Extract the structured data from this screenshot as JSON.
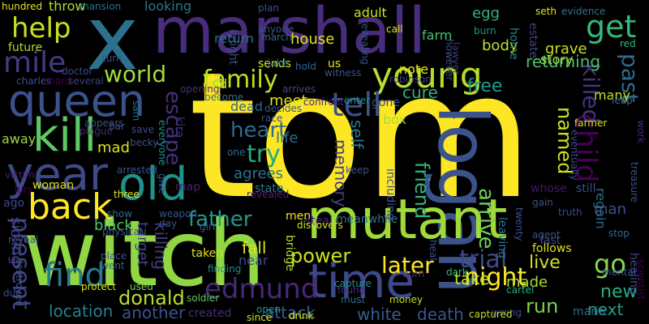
{
  "words": [
    {
      "text": "tom",
      "color": "#fde725"
    },
    {
      "text": "witch",
      "color": "#90d743"
    },
    {
      "text": "x",
      "color": "#2c728e"
    },
    {
      "text": "marshall",
      "color": "#472d7b"
    },
    {
      "text": "logan",
      "color": "#3b528b"
    },
    {
      "text": "mutant",
      "color": "#a0da39"
    },
    {
      "text": "time",
      "color": "#3e4989"
    },
    {
      "text": "queen",
      "color": "#3b528b"
    },
    {
      "text": "kill",
      "color": "#5ec962"
    },
    {
      "text": "year",
      "color": "#3e4989"
    },
    {
      "text": "old",
      "color": "#21918c"
    },
    {
      "text": "young",
      "color": "#b5de2b"
    },
    {
      "text": "back",
      "color": "#fde725"
    },
    {
      "text": "child",
      "color": "#440154"
    },
    {
      "text": "tell",
      "color": "#3b528b"
    },
    {
      "text": "help",
      "color": "#c8e020"
    },
    {
      "text": "get",
      "color": "#35b779"
    },
    {
      "text": "mile",
      "color": "#443983"
    },
    {
      "text": "edmund",
      "color": "#482878"
    },
    {
      "text": "find",
      "color": "#2a788e"
    },
    {
      "text": "killed",
      "color": "#46337f"
    },
    {
      "text": "past",
      "color": "#31688e"
    },
    {
      "text": "family",
      "color": "#bddf26"
    },
    {
      "text": "world",
      "color": "#a5db36"
    },
    {
      "text": "heart",
      "color": "#31688e"
    },
    {
      "text": "escape",
      "color": "#472f7d"
    },
    {
      "text": "try",
      "color": "#22a884"
    },
    {
      "text": "present",
      "color": "#414487"
    },
    {
      "text": "trial",
      "color": "#3e4a89"
    },
    {
      "text": "go",
      "color": "#89d548"
    },
    {
      "text": "night",
      "color": "#fde725"
    },
    {
      "text": "later",
      "color": "#fde725"
    },
    {
      "text": "arrive",
      "color": "#6ece58"
    },
    {
      "text": "friend",
      "color": "#31b57b"
    },
    {
      "text": "named",
      "color": "#cae11f"
    },
    {
      "text": "father",
      "color": "#1f9a8a"
    },
    {
      "text": "donald",
      "color": "#b8de29"
    },
    {
      "text": "power",
      "color": "#cde11d"
    },
    {
      "text": "run",
      "color": "#7ad151"
    },
    {
      "text": "new",
      "color": "#29af7f"
    },
    {
      "text": "next",
      "color": "#1fa187"
    },
    {
      "text": "live",
      "color": "#d0e11c"
    },
    {
      "text": "take",
      "color": "#c2df23"
    },
    {
      "text": "fall",
      "color": "#dde318"
    },
    {
      "text": "white",
      "color": "#355f8d"
    },
    {
      "text": "location",
      "color": "#287d8e"
    },
    {
      "text": "attack",
      "color": "#365c8d"
    },
    {
      "text": "death",
      "color": "#3a548c"
    },
    {
      "text": "another",
      "color": "#3b518b"
    },
    {
      "text": "returning",
      "color": "#4ac16d"
    },
    {
      "text": "free",
      "color": "#1e9d89"
    },
    {
      "text": "cure",
      "color": "#2db27d"
    },
    {
      "text": "note",
      "color": "#e5e419"
    },
    {
      "text": "meet",
      "color": "#dce319"
    },
    {
      "text": "life",
      "color": "#2e6d8e"
    },
    {
      "text": "self",
      "color": "#2a778e"
    },
    {
      "text": "memory",
      "color": "#433e85"
    },
    {
      "text": "agrees",
      "color": "#2c738e"
    },
    {
      "text": "killing",
      "color": "#433d84"
    },
    {
      "text": "target",
      "color": "#3f4788"
    },
    {
      "text": "black",
      "color": "#52c569"
    },
    {
      "text": "sibling",
      "color": "#424086"
    },
    {
      "text": "made",
      "color": "#a8db34"
    },
    {
      "text": "box",
      "color": "#a8db34"
    },
    {
      "text": "dead",
      "color": "#33638d"
    },
    {
      "text": "end",
      "color": "#d5e21a"
    },
    {
      "text": "mad",
      "color": "#dae319"
    },
    {
      "text": "away",
      "color": "#9bd93c"
    },
    {
      "text": "woman",
      "color": "#dae319"
    },
    {
      "text": "return",
      "color": "#2e6e8e"
    },
    {
      "text": "house",
      "color": "#e2e418"
    },
    {
      "text": "farm",
      "color": "#46c06f"
    },
    {
      "text": "egg",
      "color": "#2fb47c"
    },
    {
      "text": "call",
      "color": "#e7e419"
    },
    {
      "text": "body",
      "color": "#c0df25"
    },
    {
      "text": "grave",
      "color": "#c5e021"
    },
    {
      "text": "story",
      "color": "#a2da37"
    },
    {
      "text": "many",
      "color": "#c5e021"
    },
    {
      "text": "throw",
      "color": "#b2dd2d"
    },
    {
      "text": "future",
      "color": "#addc30"
    },
    {
      "text": "looking",
      "color": "#2b758e"
    },
    {
      "text": "adult",
      "color": "#cde11d"
    },
    {
      "text": "knight",
      "color": "#3d4d8a"
    },
    {
      "text": "sends",
      "color": "#dde318"
    },
    {
      "text": "us",
      "color": "#e2e418"
    },
    {
      "text": "opening",
      "color": "#472d7b"
    },
    {
      "text": "healing",
      "color": "#404688"
    },
    {
      "text": "map",
      "color": "#481f70"
    },
    {
      "text": "kira",
      "color": "#46327e"
    },
    {
      "text": "men",
      "color": "#f1e51d"
    },
    {
      "text": "bridge",
      "color": "#b2dd2d"
    },
    {
      "text": "near",
      "color": "#3e4989"
    },
    {
      "text": "taken",
      "color": "#dde318"
    },
    {
      "text": "steal",
      "color": "#482576"
    },
    {
      "text": "meanwhile",
      "color": "#2c738e"
    },
    {
      "text": "including",
      "color": "#39558c"
    },
    {
      "text": "follows",
      "color": "#dde318"
    },
    {
      "text": "last",
      "color": "#3e4a89"
    },
    {
      "text": "whose",
      "color": "#481769"
    },
    {
      "text": "still",
      "color": "#3c4f8a"
    },
    {
      "text": "man",
      "color": "#3b528b"
    },
    {
      "text": "regain",
      "color": "#2e6f8e"
    },
    {
      "text": "leaving",
      "color": "#2c728e"
    },
    {
      "text": "cartel",
      "color": "#29af7f"
    },
    {
      "text": "wrong",
      "color": "#3e4a89"
    },
    {
      "text": "scientist",
      "color": "#440154"
    },
    {
      "text": "maria",
      "color": "#31688e"
    },
    {
      "text": "created",
      "color": "#472d7b"
    },
    {
      "text": "home",
      "color": "#27808e"
    },
    {
      "text": "estate",
      "color": "#433e85"
    },
    {
      "text": "however",
      "color": "#3a538b"
    },
    {
      "text": "burn",
      "color": "#1f958b"
    },
    {
      "text": "state",
      "color": "#2a768e"
    },
    {
      "text": "lawyer",
      "color": "#453781"
    },
    {
      "text": "revealed",
      "color": "#482475"
    },
    {
      "text": "plague",
      "color": "#482878"
    },
    {
      "text": "three",
      "color": "#dde318"
    },
    {
      "text": "soldier",
      "color": "#5ec962"
    },
    {
      "text": "girl",
      "color": "#3b528b"
    },
    {
      "text": "discovers",
      "color": "#cde11d"
    },
    {
      "text": "money",
      "color": "#bddf26"
    },
    {
      "text": "capture",
      "color": "#21918c"
    },
    {
      "text": "captured",
      "color": "#bddf26"
    },
    {
      "text": "drink",
      "color": "#dde318"
    },
    {
      "text": "open",
      "color": "#1f958b"
    },
    {
      "text": "since",
      "color": "#dde318"
    },
    {
      "text": "found",
      "color": "#472d7b"
    },
    {
      "text": "must",
      "color": "#2c728e"
    },
    {
      "text": "dark",
      "color": "#35b779"
    },
    {
      "text": "born",
      "color": "#453781"
    },
    {
      "text": "used",
      "color": "#7ad151"
    },
    {
      "text": "protect",
      "color": "#dde318"
    },
    {
      "text": "went",
      "color": "#31688e"
    },
    {
      "text": "place",
      "color": "#3b528b"
    },
    {
      "text": "finding",
      "color": "#21918c"
    },
    {
      "text": "ago",
      "color": "#3e4989"
    },
    {
      "text": "destroyed",
      "color": "#3b528b"
    },
    {
      "text": "jury",
      "color": "#440154"
    },
    {
      "text": "victim",
      "color": "#481f70"
    },
    {
      "text": "charles",
      "color": "#3b528b"
    },
    {
      "text": "shard",
      "color": "#440154"
    },
    {
      "text": "several",
      "color": "#433e85"
    },
    {
      "text": "doctor",
      "color": "#3e4989"
    },
    {
      "text": "turn",
      "color": "#3b528b"
    },
    {
      "text": "hundred",
      "color": "#dde318"
    },
    {
      "text": "mansion",
      "color": "#2c728e"
    },
    {
      "text": "plan",
      "color": "#3b528b"
    },
    {
      "text": "anyone",
      "color": "#3b528b"
    },
    {
      "text": "march",
      "color": "#31688e"
    },
    {
      "text": "jake",
      "color": "#2c728e"
    },
    {
      "text": "hold",
      "color": "#31688e"
    },
    {
      "text": "witness",
      "color": "#3b528b"
    },
    {
      "text": "revealing",
      "color": "#3b528b"
    },
    {
      "text": "confront",
      "color": "#482878"
    },
    {
      "text": "enter",
      "color": "#21918c"
    },
    {
      "text": "arrives",
      "color": "#3e4989"
    },
    {
      "text": "decides",
      "color": "#3b528b"
    },
    {
      "text": "become",
      "color": "#2c728e"
    },
    {
      "text": "race",
      "color": "#3b528b"
    },
    {
      "text": "gone",
      "color": "#3b528b"
    },
    {
      "text": "robinson",
      "color": "#433e85"
    },
    {
      "text": "seth",
      "color": "#dde318"
    },
    {
      "text": "evidence",
      "color": "#2c728e"
    },
    {
      "text": "red",
      "color": "#35b779"
    },
    {
      "text": "leap",
      "color": "#31688e"
    },
    {
      "text": "farmer",
      "color": "#dde318"
    },
    {
      "text": "eventually",
      "color": "#3e4989"
    },
    {
      "text": "work",
      "color": "#482878"
    },
    {
      "text": "treasure",
      "color": "#3b528b"
    },
    {
      "text": "sam",
      "color": "#2c728e"
    },
    {
      "text": "bar",
      "color": "#3b528b"
    },
    {
      "text": "appears",
      "color": "#3b528b"
    },
    {
      "text": "save",
      "color": "#3e4989"
    },
    {
      "text": "becky",
      "color": "#3b528b"
    },
    {
      "text": "everyone",
      "color": "#21918c"
    },
    {
      "text": "arrested",
      "color": "#3b528b"
    },
    {
      "text": "give",
      "color": "#3b528b"
    },
    {
      "text": "weapon",
      "color": "#3b528b"
    },
    {
      "text": "physical",
      "color": "#3b528b"
    },
    {
      "text": "show",
      "color": "#31688e"
    },
    {
      "text": "day",
      "color": "#3b528b"
    },
    {
      "text": "one",
      "color": "#31688e"
    },
    {
      "text": "gain",
      "color": "#3b528b"
    },
    {
      "text": "truth",
      "color": "#3e4989"
    },
    {
      "text": "agent",
      "color": "#3b528b"
    },
    {
      "text": "stop",
      "color": "#31688e"
    },
    {
      "text": "twenty",
      "color": "#3b528b"
    },
    {
      "text": "heal",
      "color": "#3b528b"
    },
    {
      "text": "reveal",
      "color": "#3b528b"
    },
    {
      "text": "son",
      "color": "#3b528b"
    },
    {
      "text": "due",
      "color": "#3b528b"
    },
    {
      "text": "keep",
      "color": "#3b528b"
    },
    {
      "text": "mental",
      "color": "#3b528b"
    }
  ]
}
